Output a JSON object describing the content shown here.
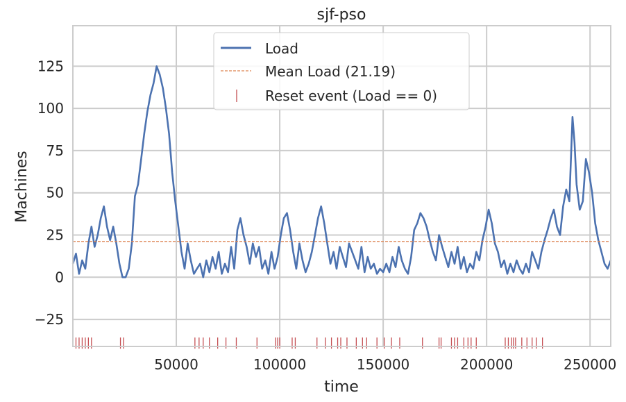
{
  "chart_data": {
    "type": "line",
    "title": "sjf-pso",
    "xlabel": "time",
    "ylabel": "Machines",
    "xlim": [
      0,
      260000
    ],
    "ylim": [
      -41,
      149
    ],
    "xticks": [
      50000,
      100000,
      150000,
      200000,
      250000
    ],
    "xtick_labels": [
      "50000",
      "100000",
      "150000",
      "200000",
      "250000"
    ],
    "yticks": [
      -25,
      0,
      25,
      50,
      75,
      100,
      125
    ],
    "ytick_labels": [
      "−25",
      "0",
      "25",
      "50",
      "75",
      "100",
      "125"
    ],
    "grid": true,
    "legend_position": "top-center",
    "legend": [
      {
        "label": "Load",
        "kind": "line"
      },
      {
        "label": "Mean Load (21.19)",
        "kind": "dashed"
      },
      {
        "label": "Reset event (Load == 0)",
        "kind": "tick"
      }
    ],
    "mean_load": 21.19,
    "reset_marker_y": -39,
    "colors": {
      "load": "#4c72b0",
      "mean": "#dd8452",
      "reset": "#c44e52",
      "grid": "#cccccc",
      "frame": "#cccccc"
    },
    "series": [
      {
        "name": "Load",
        "x": [
          0,
          1500,
          3000,
          4500,
          6000,
          7500,
          9000,
          10500,
          12000,
          13500,
          15000,
          16500,
          18000,
          19500,
          21000,
          22500,
          24000,
          25500,
          27000,
          28500,
          30000,
          31500,
          33000,
          34500,
          36000,
          37500,
          39000,
          40500,
          42000,
          43500,
          45000,
          46500,
          48000,
          49500,
          51000,
          52500,
          54000,
          55500,
          57000,
          58500,
          60000,
          61500,
          63000,
          64500,
          66000,
          67500,
          69000,
          70500,
          72000,
          73500,
          75000,
          76500,
          78000,
          79500,
          81000,
          82500,
          84000,
          85500,
          87000,
          88500,
          90000,
          91500,
          93000,
          94500,
          96000,
          97500,
          99000,
          100500,
          102000,
          103500,
          105000,
          106500,
          108000,
          109500,
          111000,
          112500,
          114000,
          115500,
          117000,
          118500,
          120000,
          121500,
          123000,
          124500,
          126000,
          127500,
          129000,
          130500,
          132000,
          133500,
          135000,
          136500,
          138000,
          139500,
          141000,
          142500,
          144000,
          145500,
          147000,
          148500,
          150000,
          151500,
          153000,
          154500,
          156000,
          157500,
          159000,
          160500,
          162000,
          163500,
          165000,
          166500,
          168000,
          169500,
          171000,
          172500,
          174000,
          175500,
          177000,
          178500,
          180000,
          181500,
          183000,
          184500,
          186000,
          187500,
          189000,
          190500,
          192000,
          193500,
          195000,
          196500,
          198000,
          199500,
          201000,
          202500,
          204000,
          205500,
          207000,
          208500,
          210000,
          211500,
          213000,
          214500,
          216000,
          217500,
          219000,
          220500,
          222000,
          223500,
          225000,
          226500,
          228000,
          229500,
          231000,
          232500,
          234000,
          235500,
          237000,
          238500,
          240000,
          241500,
          242500,
          243500,
          245000,
          246500,
          248000,
          249500,
          251000,
          252500,
          254000,
          255500,
          257000,
          258500,
          260000
        ],
        "values": [
          8,
          14,
          2,
          10,
          5,
          20,
          30,
          18,
          25,
          35,
          42,
          30,
          22,
          30,
          20,
          8,
          0,
          0,
          5,
          20,
          48,
          55,
          70,
          85,
          98,
          108,
          115,
          125,
          120,
          112,
          100,
          85,
          62,
          45,
          30,
          15,
          5,
          20,
          10,
          2,
          5,
          8,
          0,
          10,
          3,
          12,
          5,
          15,
          2,
          8,
          3,
          18,
          5,
          28,
          35,
          25,
          18,
          8,
          20,
          12,
          18,
          5,
          10,
          2,
          15,
          5,
          12,
          25,
          35,
          38,
          28,
          15,
          5,
          20,
          10,
          3,
          8,
          15,
          25,
          35,
          42,
          32,
          20,
          8,
          15,
          5,
          18,
          12,
          6,
          20,
          15,
          10,
          5,
          18,
          3,
          12,
          5,
          8,
          2,
          5,
          3,
          8,
          3,
          12,
          6,
          18,
          10,
          5,
          2,
          12,
          28,
          32,
          38,
          35,
          30,
          22,
          15,
          10,
          25,
          18,
          12,
          6,
          15,
          8,
          18,
          5,
          12,
          3,
          8,
          5,
          15,
          10,
          22,
          30,
          40,
          32,
          20,
          15,
          6,
          10,
          2,
          8,
          3,
          10,
          5,
          2,
          8,
          3,
          15,
          10,
          5,
          15,
          22,
          28,
          35,
          40,
          30,
          25,
          42,
          52,
          45,
          95,
          80,
          55,
          40,
          45,
          70,
          62,
          50,
          32,
          22,
          15,
          8,
          5,
          10
        ]
      }
    ],
    "reset_events": [
      1500,
      3000,
      4500,
      6000,
      7500,
      9000,
      23000,
      24500,
      59000,
      61000,
      63000,
      66000,
      70000,
      74000,
      79000,
      89000,
      98000,
      99000,
      100000,
      106000,
      107500,
      118000,
      122000,
      125000,
      128000,
      129500,
      132500,
      137000,
      140000,
      142000,
      147000,
      150500,
      154000,
      158000,
      169000,
      177000,
      178000,
      183000,
      184500,
      186000,
      189000,
      191000,
      192500,
      195000,
      209000,
      210500,
      212000,
      213000,
      214000,
      217000,
      219500,
      222000,
      224000,
      227000
    ]
  }
}
